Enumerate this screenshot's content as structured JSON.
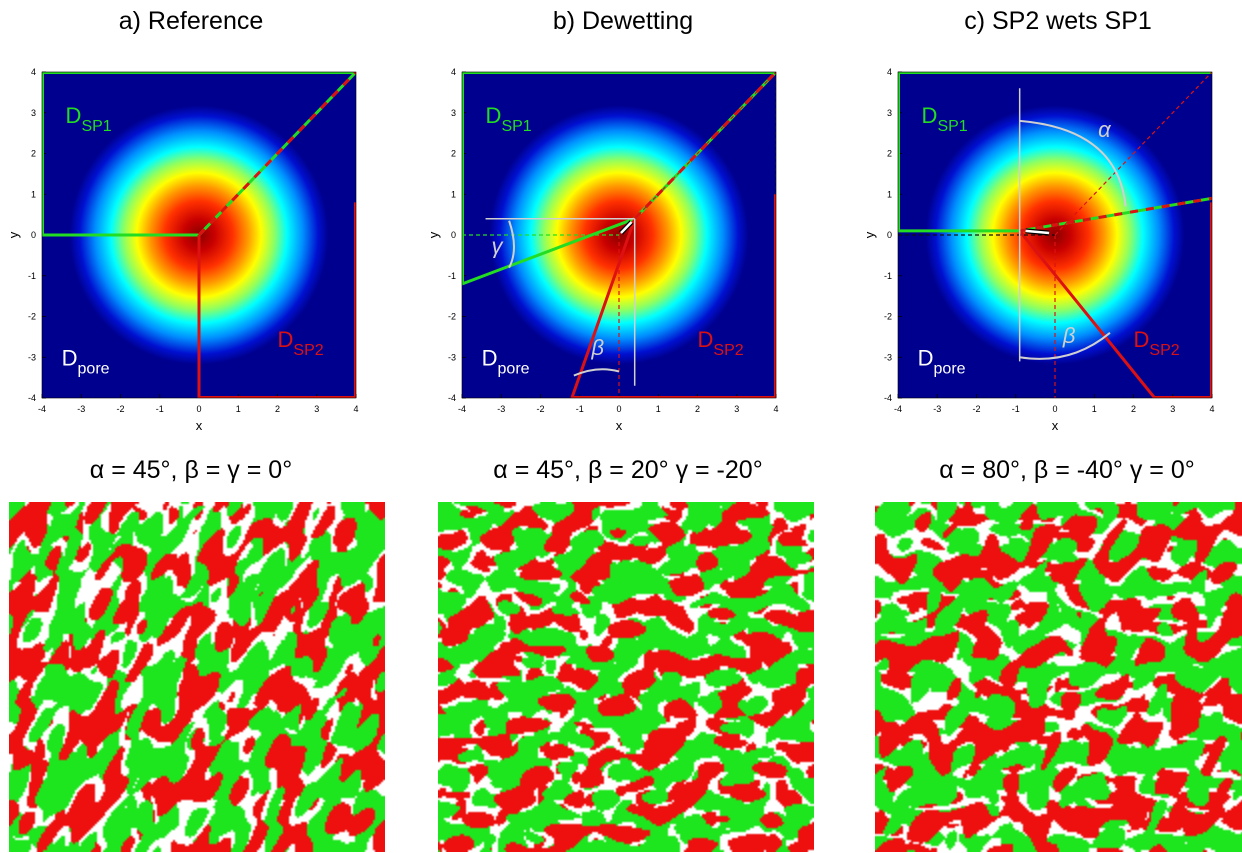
{
  "panels": [
    {
      "title": "a) Reference",
      "params": "α = 45°, β = γ = 0°",
      "regions": {
        "sp1_main": "D",
        "sp1_sub": "SP1",
        "sp2_main": "D",
        "sp2_sub": "SP2",
        "pore_main": "D",
        "pore_sub": "pore"
      },
      "angles": {
        "alpha_deg": 45,
        "beta_deg": 0,
        "gamma_deg": 0
      },
      "triple_point": [
        0,
        0
      ],
      "annotations": {
        "alpha": "",
        "beta": "",
        "gamma": ""
      }
    },
    {
      "title": "b) Dewetting",
      "params": "α = 45°, β = 20° γ = -20°",
      "regions": {
        "sp1_main": "D",
        "sp1_sub": "SP1",
        "sp2_main": "D",
        "sp2_sub": "SP2",
        "pore_main": "D",
        "pore_sub": "pore"
      },
      "angles": {
        "alpha_deg": 45,
        "beta_deg": 20,
        "gamma_deg": -20
      },
      "triple_point": [
        0.4,
        0.4
      ],
      "annotations": {
        "alpha": "",
        "beta": "β",
        "gamma": "γ"
      }
    },
    {
      "title": "c) SP2 wets SP1",
      "params": "α = 80°, β = -40° γ = 0°",
      "regions": {
        "sp1_main": "D",
        "sp1_sub": "SP1",
        "sp2_main": "D",
        "sp2_sub": "SP2",
        "pore_main": "D",
        "pore_sub": "pore"
      },
      "angles": {
        "alpha_deg": 80,
        "beta_deg": -40,
        "gamma_deg": 0
      },
      "triple_point": [
        -0.9,
        0.1
      ],
      "annotations": {
        "alpha": "α",
        "beta": "β",
        "gamma": ""
      }
    }
  ],
  "axes": {
    "xlabel": "x",
    "ylabel": "y",
    "xlim": [
      -4,
      4
    ],
    "ylim": [
      -4,
      4
    ],
    "ticks": [
      -4,
      -3,
      -2,
      -1,
      0,
      1,
      2,
      3,
      4
    ]
  },
  "colors": {
    "sp1": "#22dd22",
    "sp2": "#dd1111",
    "background_field": "#00008f",
    "field_center": "#8b0000",
    "annotation": "#d0d0d0",
    "morph_sp1": "#1ee61e",
    "morph_sp2": "#ee0f0f",
    "morph_pore": "#ffffff"
  },
  "morphology_fractions": [
    {
      "sp1": 0.33,
      "sp2": 0.34,
      "pore": 0.33,
      "seed": 11
    },
    {
      "sp1": 0.33,
      "sp2": 0.34,
      "pore": 0.33,
      "seed": 27
    },
    {
      "sp1": 0.33,
      "sp2": 0.34,
      "pore": 0.33,
      "seed": 53
    }
  ]
}
